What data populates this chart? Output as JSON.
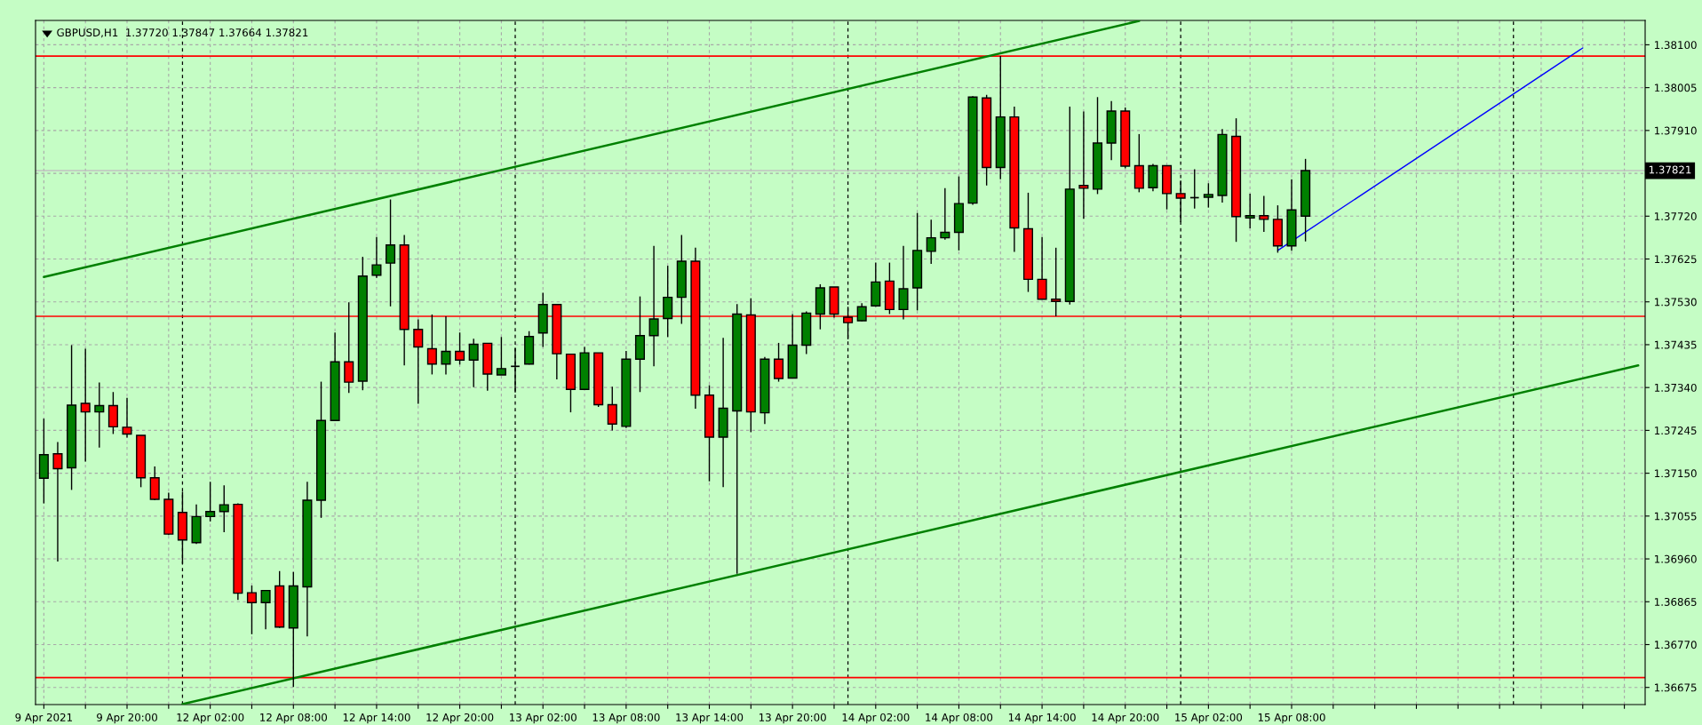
{
  "chart_data": {
    "type": "candlestick",
    "title": "GBPUSD,H1  1.37720 1.37847 1.37664 1.37821",
    "categories": [
      "9 Apr 2021",
      null,
      null,
      null,
      null,
      null,
      "9 Apr 20:00",
      null,
      null,
      null,
      null,
      null,
      "12 Apr 02:00",
      null,
      null,
      null,
      null,
      null,
      "12 Apr 08:00",
      null,
      null,
      null,
      null,
      null,
      "12 Apr 14:00",
      null,
      null,
      null,
      null,
      null,
      "12 Apr 20:00",
      null,
      null,
      null,
      null,
      null,
      "13 Apr 02:00",
      null,
      null,
      null,
      null,
      null,
      "13 Apr 08:00",
      null,
      null,
      null,
      null,
      null,
      "13 Apr 14:00",
      null,
      null,
      null,
      null,
      null,
      "13 Apr 20:00",
      null,
      null,
      null,
      null,
      null,
      "14 Apr 02:00",
      null,
      null,
      null,
      null,
      null,
      "14 Apr 08:00",
      null,
      null,
      null,
      null,
      null,
      "14 Apr 14:00",
      null,
      null,
      null,
      null,
      null,
      "14 Apr 20:00",
      null,
      null,
      null,
      null,
      null,
      "15 Apr 02:00",
      null,
      null,
      null,
      null,
      null,
      "15 Apr 08:00",
      null,
      null,
      null,
      null,
      null,
      null,
      null,
      null,
      null,
      null,
      null,
      null,
      null,
      null,
      null,
      null,
      null,
      null,
      null,
      null,
      null,
      null,
      null,
      null,
      null
    ],
    "ohlc": [
      [
        1.37139,
        1.37271,
        1.37083,
        1.37191
      ],
      [
        1.37193,
        1.37219,
        1.36954,
        1.3716
      ],
      [
        1.37162,
        1.37434,
        1.37113,
        1.37301
      ],
      [
        1.37305,
        1.37426,
        1.37176,
        1.37286
      ],
      [
        1.37286,
        1.37351,
        1.37207,
        1.373
      ],
      [
        1.373,
        1.3733,
        1.37237,
        1.37253
      ],
      [
        1.37252,
        1.37317,
        1.37229,
        1.37237
      ],
      [
        1.37234,
        1.37234,
        1.37119,
        1.3714
      ],
      [
        1.3714,
        1.37165,
        1.3709,
        1.37092
      ],
      [
        1.37092,
        1.37107,
        1.37013,
        1.37015
      ],
      [
        1.37063,
        1.37109,
        1.36949,
        1.37002
      ],
      [
        1.36996,
        1.37081,
        1.36993,
        1.37054
      ],
      [
        1.37054,
        1.37131,
        1.37043,
        1.37065
      ],
      [
        1.37065,
        1.37123,
        1.37019,
        1.3708
      ],
      [
        1.37081,
        1.37083,
        1.36869,
        1.36884
      ],
      [
        1.36885,
        1.36901,
        1.36793,
        1.36863
      ],
      [
        1.36863,
        1.3689,
        1.36804,
        1.3689
      ],
      [
        1.369,
        1.36933,
        1.36807,
        1.36809
      ],
      [
        1.36807,
        1.36931,
        1.36676,
        1.369
      ],
      [
        1.36898,
        1.37131,
        1.36788,
        1.3709
      ],
      [
        1.3709,
        1.37353,
        1.37051,
        1.37267
      ],
      [
        1.37267,
        1.37462,
        1.37267,
        1.37397
      ],
      [
        1.37397,
        1.37529,
        1.37328,
        1.37352
      ],
      [
        1.37354,
        1.3763,
        1.37334,
        1.37587
      ],
      [
        1.37589,
        1.37674,
        1.37583,
        1.37612
      ],
      [
        1.37616,
        1.37757,
        1.3752,
        1.37656
      ],
      [
        1.37656,
        1.37678,
        1.37389,
        1.37469
      ],
      [
        1.37469,
        1.37491,
        1.37304,
        1.3743
      ],
      [
        1.37426,
        1.37502,
        1.37369,
        1.37392
      ],
      [
        1.37392,
        1.37498,
        1.37369,
        1.3742
      ],
      [
        1.3742,
        1.37462,
        1.37391,
        1.37401
      ],
      [
        1.37401,
        1.37448,
        1.37341,
        1.37436
      ],
      [
        1.37438,
        1.37438,
        1.37333,
        1.3737
      ],
      [
        1.37368,
        1.37452,
        1.37368,
        1.37382
      ],
      [
        1.37387,
        1.37428,
        1.37329,
        1.37387
      ],
      [
        1.37392,
        1.37465,
        1.37391,
        1.37453
      ],
      [
        1.37461,
        1.3755,
        1.3743,
        1.37524
      ],
      [
        1.37524,
        1.37524,
        1.37358,
        1.37415
      ],
      [
        1.37414,
        1.37414,
        1.37285,
        1.37336
      ],
      [
        1.37336,
        1.3743,
        1.37336,
        1.37417
      ],
      [
        1.37417,
        1.37417,
        1.37297,
        1.37302
      ],
      [
        1.37302,
        1.37342,
        1.37245,
        1.37259
      ],
      [
        1.37254,
        1.37421,
        1.3725,
        1.37403
      ],
      [
        1.37403,
        1.37542,
        1.3733,
        1.37455
      ],
      [
        1.37455,
        1.37654,
        1.37387,
        1.37492
      ],
      [
        1.37493,
        1.3761,
        1.37452,
        1.3754
      ],
      [
        1.3754,
        1.37678,
        1.37481,
        1.3762
      ],
      [
        1.3762,
        1.3765,
        1.37293,
        1.37323
      ],
      [
        1.37323,
        1.37345,
        1.37132,
        1.3723
      ],
      [
        1.3723,
        1.3745,
        1.37119,
        1.37294
      ],
      [
        1.37288,
        1.37525,
        1.36927,
        1.37503
      ],
      [
        1.37501,
        1.37538,
        1.37241,
        1.37286
      ],
      [
        1.37284,
        1.37408,
        1.37259,
        1.37403
      ],
      [
        1.37403,
        1.37439,
        1.37353,
        1.3736
      ],
      [
        1.37361,
        1.37503,
        1.37361,
        1.37434
      ],
      [
        1.37434,
        1.37509,
        1.37414,
        1.37505
      ],
      [
        1.37503,
        1.37569,
        1.37469,
        1.37561
      ],
      [
        1.37563,
        1.37563,
        1.37495,
        1.37503
      ],
      [
        1.37496,
        1.37519,
        1.37447,
        1.37484
      ],
      [
        1.37488,
        1.37527,
        1.37487,
        1.37519
      ],
      [
        1.37521,
        1.37617,
        1.37519,
        1.37574
      ],
      [
        1.37576,
        1.37617,
        1.37503,
        1.37513
      ],
      [
        1.37513,
        1.37654,
        1.37491,
        1.37559
      ],
      [
        1.37561,
        1.37727,
        1.37511,
        1.37644
      ],
      [
        1.37642,
        1.37712,
        1.37614,
        1.37672
      ],
      [
        1.37672,
        1.37782,
        1.37668,
        1.37684
      ],
      [
        1.37684,
        1.37808,
        1.37644,
        1.37748
      ],
      [
        1.37749,
        1.37986,
        1.37745,
        1.37984
      ],
      [
        1.37982,
        1.37989,
        1.37788,
        1.37828
      ],
      [
        1.37828,
        1.38075,
        1.37802,
        1.3794
      ],
      [
        1.3794,
        1.37963,
        1.37641,
        1.37694
      ],
      [
        1.37692,
        1.37772,
        1.37552,
        1.3758
      ],
      [
        1.3758,
        1.37674,
        1.37536,
        1.37536
      ],
      [
        1.37536,
        1.3765,
        1.37498,
        1.37531
      ],
      [
        1.37531,
        1.37963,
        1.37524,
        1.3778
      ],
      [
        1.37788,
        1.37952,
        1.37714,
        1.37782
      ],
      [
        1.3778,
        1.37984,
        1.37769,
        1.37882
      ],
      [
        1.37882,
        1.37975,
        1.37844,
        1.37953
      ],
      [
        1.37953,
        1.37961,
        1.37826,
        1.37831
      ],
      [
        1.37832,
        1.37902,
        1.37773,
        1.37782
      ],
      [
        1.37783,
        1.37836,
        1.37775,
        1.37832
      ],
      [
        1.37832,
        1.37832,
        1.37735,
        1.3777
      ],
      [
        1.3777,
        1.37799,
        1.37707,
        1.3776
      ],
      [
        1.37761,
        1.37824,
        1.37737,
        1.37761
      ],
      [
        1.37762,
        1.37793,
        1.37739,
        1.37768
      ],
      [
        1.37766,
        1.37913,
        1.3775,
        1.37901
      ],
      [
        1.37897,
        1.37937,
        1.37663,
        1.37719
      ],
      [
        1.37716,
        1.3777,
        1.37693,
        1.37721
      ],
      [
        1.37721,
        1.37765,
        1.37685,
        1.37713
      ],
      [
        1.37713,
        1.37744,
        1.37639,
        1.37654
      ],
      [
        1.37654,
        1.37802,
        1.37643,
        1.37734
      ],
      [
        1.3772,
        1.37847,
        1.37664,
        1.37821
      ],
      null,
      null,
      null,
      null,
      null,
      null,
      null,
      null,
      null,
      null,
      null,
      null,
      null,
      null,
      null,
      null,
      null,
      null,
      null,
      null,
      null,
      null,
      null,
      null
    ],
    "colors": [
      "#008000",
      "#ff0000",
      "#008000",
      "#ff0000",
      "#008000",
      "#ff0000",
      "#ff0000",
      "#ff0000",
      "#ff0000",
      "#ff0000",
      "#ff0000",
      "#008000",
      "#008000",
      "#008000",
      "#ff0000",
      "#ff0000",
      "#008000",
      "#ff0000",
      "#008000",
      "#008000",
      "#008000",
      "#008000",
      "#ff0000",
      "#008000",
      "#008000",
      "#008000",
      "#ff0000",
      "#ff0000",
      "#ff0000",
      "#008000",
      "#ff0000",
      "#008000",
      "#ff0000",
      "#008000",
      "#000000",
      "#008000",
      "#008000",
      "#ff0000",
      "#ff0000",
      "#008000",
      "#ff0000",
      "#ff0000",
      "#008000",
      "#008000",
      "#008000",
      "#008000",
      "#008000",
      "#ff0000",
      "#ff0000",
      "#008000",
      "#008000",
      "#ff0000",
      "#008000",
      "#ff0000",
      "#008000",
      "#008000",
      "#008000",
      "#ff0000",
      "#ff0000",
      "#008000",
      "#008000",
      "#ff0000",
      "#008000",
      "#008000",
      "#008000",
      "#008000",
      "#008000",
      "#008000",
      "#ff0000",
      "#008000",
      "#ff0000",
      "#ff0000",
      "#ff0000",
      "#ff0000",
      "#008000",
      "#ff0000",
      "#008000",
      "#008000",
      "#ff0000",
      "#ff0000",
      "#008000",
      "#ff0000",
      "#ff0000",
      "#000000",
      "#008000",
      "#008000",
      "#ff0000",
      "#008000",
      "#ff0000",
      "#ff0000",
      "#008000",
      "#008000",
      null,
      null,
      null,
      null,
      null,
      null,
      null,
      null,
      null,
      null,
      null,
      null,
      null,
      null,
      null,
      null,
      null,
      null,
      null,
      null,
      null,
      null,
      null,
      null
    ],
    "series": [
      {
        "type": "line",
        "color": "#008000",
        "values": [
          1.37585,
          null,
          null,
          null,
          null,
          null,
          null,
          null,
          null,
          null,
          null,
          null,
          null,
          null,
          null,
          null,
          null,
          null,
          null,
          null,
          null,
          null,
          null,
          null,
          null,
          null,
          null,
          null,
          null,
          null,
          null,
          null,
          null,
          null,
          null,
          null,
          null,
          null,
          null,
          null,
          null,
          null,
          null,
          null,
          null,
          null,
          null,
          null,
          null,
          null,
          null,
          null,
          null,
          null,
          null,
          null,
          null,
          null,
          null,
          null,
          null,
          null,
          null,
          null,
          null,
          null,
          null,
          null,
          null,
          null,
          null,
          null,
          null,
          null,
          null,
          null,
          null,
          null,
          null,
          1.38153,
          null,
          null,
          null,
          null,
          null,
          null,
          null,
          null,
          null,
          null,
          null,
          null,
          null,
          null,
          null,
          null,
          null,
          null,
          null,
          null,
          null,
          null,
          null,
          null,
          null,
          null,
          null,
          null,
          null,
          null,
          null,
          null,
          null,
          null,
          null,
          null
        ]
      },
      {
        "type": "line",
        "color": "#008000",
        "values": [
          null,
          null,
          null,
          null,
          null,
          null,
          null,
          null,
          null,
          null,
          1.36638,
          null,
          null,
          null,
          null,
          null,
          null,
          null,
          null,
          null,
          null,
          null,
          null,
          null,
          null,
          null,
          null,
          null,
          null,
          null,
          null,
          null,
          null,
          null,
          null,
          null,
          null,
          null,
          null,
          null,
          null,
          null,
          null,
          null,
          null,
          null,
          null,
          null,
          null,
          null,
          null,
          null,
          null,
          null,
          null,
          null,
          null,
          null,
          null,
          null,
          null,
          null,
          null,
          null,
          null,
          null,
          null,
          null,
          null,
          null,
          null,
          null,
          null,
          null,
          null,
          null,
          null,
          null,
          null,
          null,
          null,
          null,
          null,
          null,
          null,
          null,
          null,
          null,
          null,
          null,
          null,
          null,
          null,
          null,
          null,
          null,
          null,
          null,
          null,
          null,
          null,
          null,
          null,
          null,
          null,
          null,
          null,
          null,
          null,
          null,
          null,
          null,
          null,
          null,
          null,
          1.37389
        ]
      },
      {
        "type": "line",
        "color": "#0000ff",
        "values": [
          null,
          null,
          null,
          null,
          null,
          null,
          null,
          null,
          null,
          null,
          null,
          null,
          null,
          null,
          null,
          null,
          null,
          null,
          null,
          null,
          null,
          null,
          null,
          null,
          null,
          null,
          null,
          null,
          null,
          null,
          null,
          null,
          null,
          null,
          null,
          null,
          null,
          null,
          null,
          null,
          null,
          null,
          null,
          null,
          null,
          null,
          null,
          null,
          null,
          null,
          null,
          null,
          null,
          null,
          null,
          null,
          null,
          null,
          null,
          null,
          null,
          null,
          null,
          null,
          null,
          null,
          null,
          null,
          null,
          null,
          null,
          null,
          null,
          null,
          null,
          null,
          null,
          null,
          null,
          null,
          null,
          null,
          null,
          null,
          null,
          null,
          null,
          null,
          null,
          1.37644,
          null,
          null,
          null,
          null,
          null,
          null,
          null,
          null,
          null,
          null,
          null,
          null,
          null,
          null,
          null,
          null,
          null,
          null,
          null,
          null,
          null,
          1.38093,
          null,
          null,
          null,
          null
        ]
      }
    ],
    "ylim": [
      1.36637,
      1.38154
    ],
    "yticks": [
      {
        "value": 1.36675,
        "label": "1.36675"
      },
      {
        "value": 1.3677,
        "label": "1.36770"
      },
      {
        "value": 1.36865,
        "label": "1.36865"
      },
      {
        "value": 1.3696,
        "label": "1.36960"
      },
      {
        "value": 1.37055,
        "label": "1.37055"
      },
      {
        "value": 1.3715,
        "label": "1.37150"
      },
      {
        "value": 1.37245,
        "label": "1.37245"
      },
      {
        "value": 1.3734,
        "label": "1.37340"
      },
      {
        "value": 1.37435,
        "label": "1.37435"
      },
      {
        "value": 1.3753,
        "label": "1.37530"
      },
      {
        "value": 1.37625,
        "label": "1.37625"
      },
      {
        "value": 1.3772,
        "label": "1.37720"
      },
      {
        "value": 1.37815,
        "label": null
      },
      {
        "value": 1.3791,
        "label": "1.37910"
      },
      {
        "value": 1.38005,
        "label": "1.38005"
      },
      {
        "value": 1.381,
        "label": "1.38100"
      }
    ],
    "ref_lines": [
      {
        "axis": "y",
        "value": 1.38075,
        "color": "#ff0000",
        "line_style": "solid"
      },
      {
        "axis": "y",
        "value": 1.37498,
        "color": "#ff0000",
        "line_style": "solid"
      },
      {
        "axis": "y",
        "value": 1.36697,
        "color": "#ff0000",
        "line_style": "solid"
      },
      {
        "axis": "y",
        "value": 1.37821,
        "label": "1.37821",
        "color": "#c0c0c0",
        "line_style": "solid"
      }
    ],
    "grid": true
  }
}
